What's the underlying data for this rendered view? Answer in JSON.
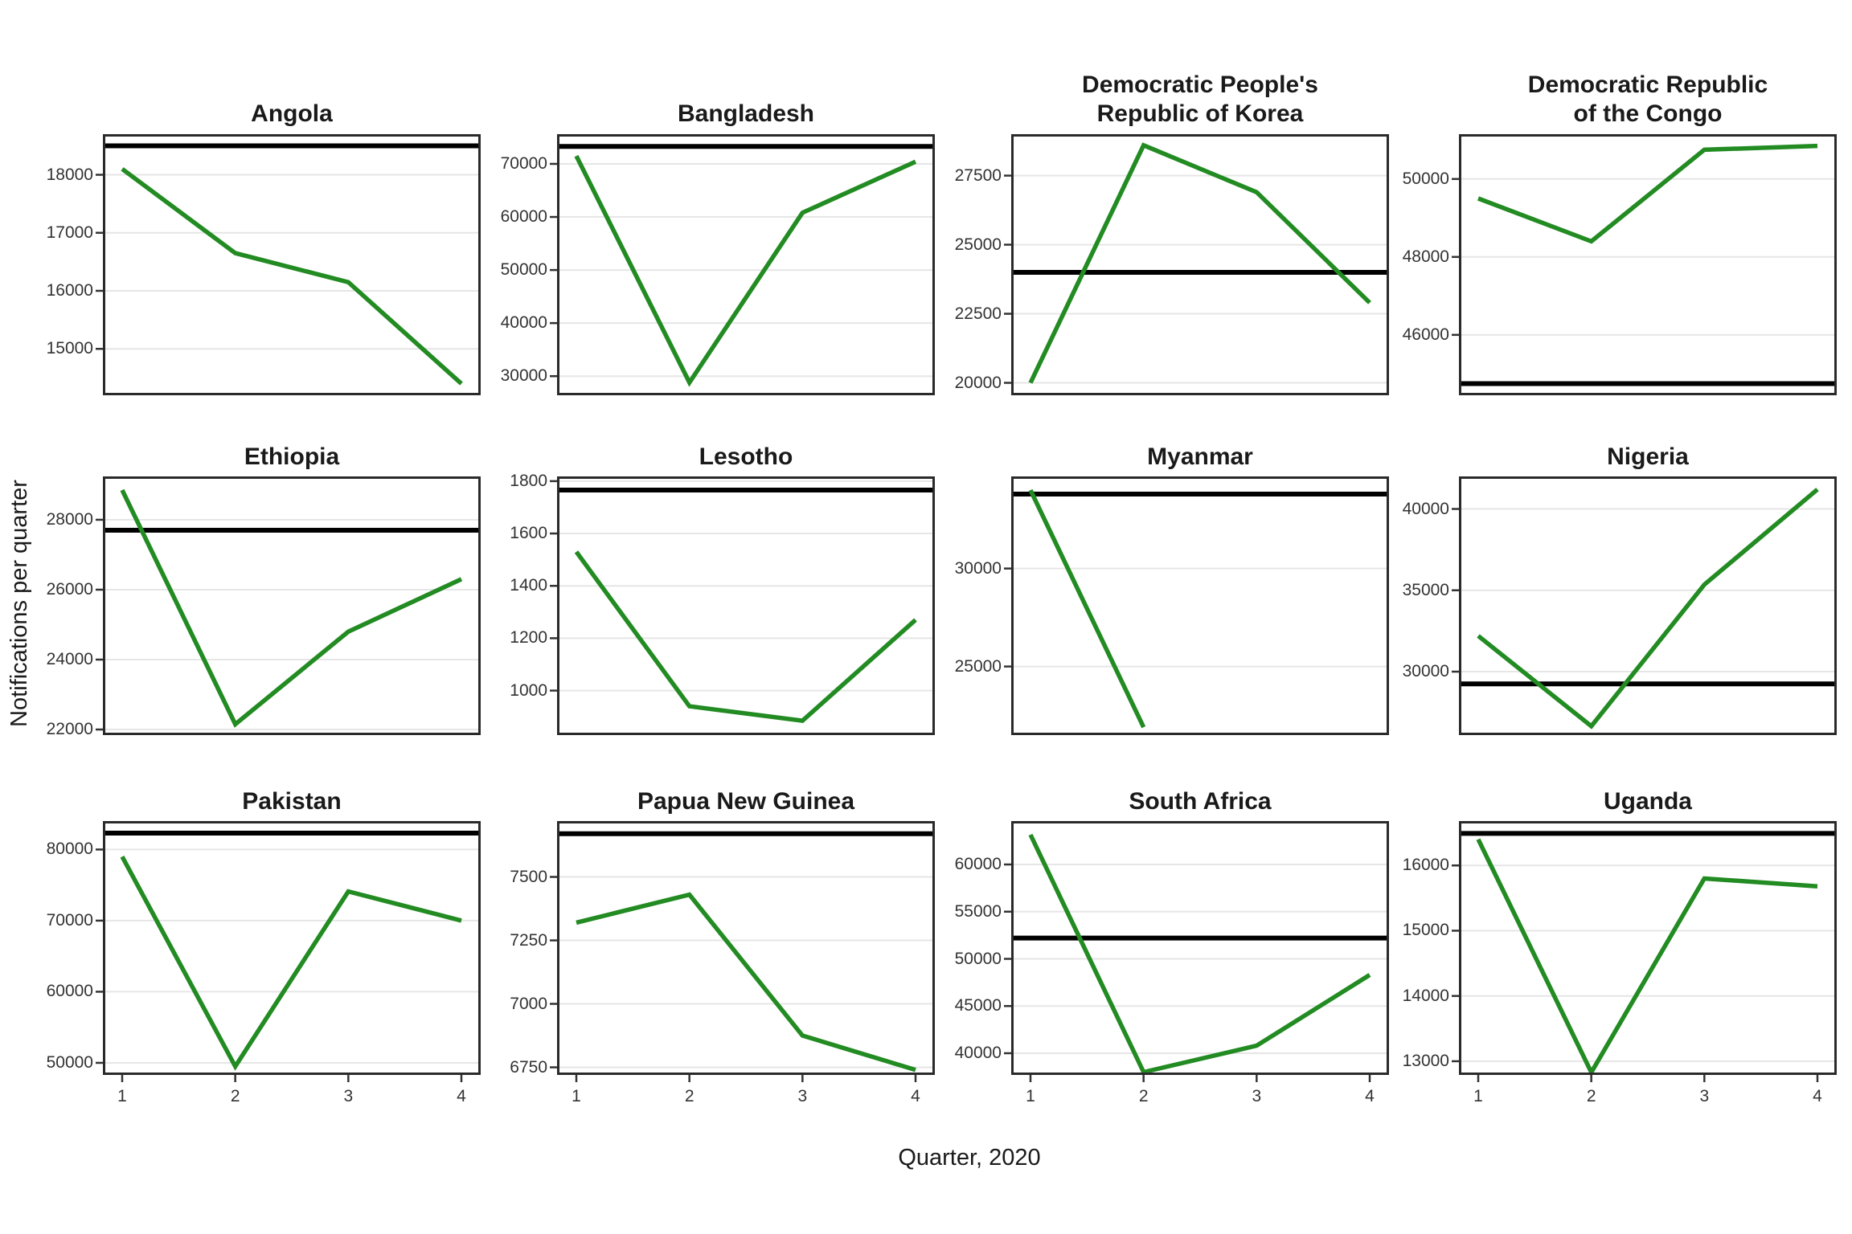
{
  "figure": {
    "x_axis_label": "Quarter, 2020",
    "y_axis_label": "Notifications per quarter",
    "x_tick_labels": [
      "1",
      "2",
      "3",
      "4"
    ],
    "legend": "none",
    "grid": "horizontal major gridlines only",
    "colors": {
      "data_line": "#228B22",
      "reference_line": "#000000",
      "gridline": "#E6E6E6",
      "panel_border": "#2A2A2A",
      "tick_text": "#333333",
      "title_text": "#1A1A1A"
    }
  },
  "chart_data": [
    {
      "type": "line",
      "title": "Angola",
      "x": [
        1,
        2,
        3,
        4
      ],
      "values": [
        18100,
        16650,
        16150,
        14400
      ],
      "reference_line": 18500,
      "yticks": [
        18000,
        17000,
        16000,
        15000
      ],
      "ylim": [
        14200,
        18700
      ]
    },
    {
      "type": "line",
      "title": "Bangladesh",
      "x": [
        1,
        2,
        3,
        4
      ],
      "values": [
        71500,
        28800,
        60800,
        70400
      ],
      "reference_line": 73300,
      "yticks": [
        70000,
        60000,
        50000,
        40000,
        30000
      ],
      "ylim": [
        26400,
        75600
      ]
    },
    {
      "type": "line",
      "title": "Democratic People's\nRepublic of Korea",
      "x": [
        1,
        2,
        3,
        4
      ],
      "values": [
        20000,
        28600,
        26900,
        22900
      ],
      "reference_line": 24000,
      "yticks": [
        27500,
        25000,
        22500,
        20000
      ],
      "ylim": [
        19550,
        29000
      ]
    },
    {
      "type": "line",
      "title": "Democratic Republic\nof the Congo",
      "x": [
        1,
        2,
        3,
        4
      ],
      "values": [
        49500,
        48400,
        50750,
        50850
      ],
      "reference_line": 44750,
      "yticks": [
        50000,
        48000,
        46000
      ],
      "ylim": [
        44450,
        51150
      ]
    },
    {
      "type": "line",
      "title": "Ethiopia",
      "x": [
        1,
        2,
        3,
        4
      ],
      "values": [
        28850,
        22150,
        24800,
        26300
      ],
      "reference_line": 27700,
      "yticks": [
        28000,
        26000,
        24000,
        22000
      ],
      "ylim": [
        21840,
        29240
      ]
    },
    {
      "type": "line",
      "title": "Lesotho",
      "x": [
        1,
        2,
        3,
        4
      ],
      "values": [
        1530,
        940,
        885,
        1270
      ],
      "reference_line": 1766,
      "yticks": [
        1800,
        1600,
        1400,
        1200,
        1000
      ],
      "ylim": [
        830,
        1818
      ]
    },
    {
      "type": "line",
      "title": "Myanmar",
      "x": [
        1,
        2,
        3,
        4
      ],
      "values": [
        34000,
        21900,
        null,
        null
      ],
      "reference_line": 33800,
      "yticks": [
        30000,
        25000
      ],
      "ylim": [
        21500,
        34700
      ]
    },
    {
      "type": "line",
      "title": "Nigeria",
      "x": [
        1,
        2,
        3,
        4
      ],
      "values": [
        32200,
        26650,
        35350,
        41200
      ],
      "reference_line": 29250,
      "yticks": [
        40000,
        35000,
        30000
      ],
      "ylim": [
        26100,
        42000
      ]
    },
    {
      "type": "line",
      "title": "Pakistan",
      "x": [
        1,
        2,
        3,
        4
      ],
      "values": [
        79000,
        49500,
        74100,
        70000
      ],
      "reference_line": 82300,
      "yticks": [
        80000,
        70000,
        60000,
        50000
      ],
      "ylim": [
        48300,
        84000
      ]
    },
    {
      "type": "line",
      "title": "Papua New Guinea",
      "x": [
        1,
        2,
        3,
        4
      ],
      "values": [
        7320,
        7430,
        6875,
        6740
      ],
      "reference_line": 7670,
      "yticks": [
        7500,
        7250,
        7000,
        6750
      ],
      "ylim": [
        6720,
        7720
      ]
    },
    {
      "type": "line",
      "title": "South Africa",
      "x": [
        1,
        2,
        3,
        4
      ],
      "values": [
        63150,
        38000,
        40800,
        48300
      ],
      "reference_line": 52200,
      "yticks": [
        60000,
        55000,
        50000,
        45000,
        40000
      ],
      "ylim": [
        37700,
        64600
      ]
    },
    {
      "type": "line",
      "title": "Uganda",
      "x": [
        1,
        2,
        3,
        4
      ],
      "values": [
        16400,
        12830,
        15800,
        15680
      ],
      "reference_line": 16490,
      "yticks": [
        16000,
        15000,
        14000,
        13000
      ],
      "ylim": [
        12790,
        16680
      ]
    }
  ]
}
